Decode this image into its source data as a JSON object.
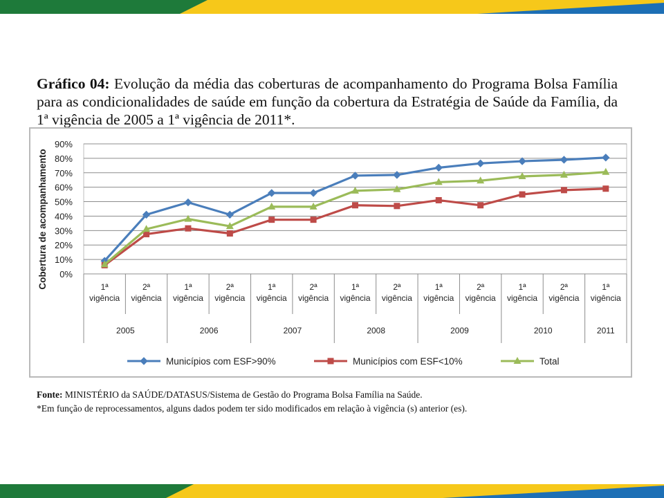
{
  "colors": {
    "band_green": "#1e7a3a",
    "band_yellow": "#f6c81a",
    "band_blue": "#1d6fb5",
    "series_blue": "#4a7ebb",
    "series_red": "#be4b48",
    "series_green": "#9bbb59"
  },
  "caption": {
    "label": "Gráfico 04:",
    "text": " Evolução da média das coberturas de acompanhamento do Programa Bolsa Família para as condicionalidades de saúde em função da cobertura da Estratégia de Saúde da Família, da 1ª vigência de 2005 a 1ª vigência de 2011*."
  },
  "chart_data": {
    "type": "line",
    "ylabel": "Cobertura de acompanhamento",
    "ylim": [
      0,
      90
    ],
    "yticks": [
      "0%",
      "10%",
      "20%",
      "30%",
      "40%",
      "50%",
      "60%",
      "70%",
      "80%",
      "90%"
    ],
    "grid": true,
    "legend_position": "bottom",
    "categories": [
      {
        "line1": "1ª",
        "line2": "vigência"
      },
      {
        "line1": "2ª",
        "line2": "vigência"
      },
      {
        "line1": "1ª",
        "line2": "vigência"
      },
      {
        "line1": "2ª",
        "line2": "vigência"
      },
      {
        "line1": "1ª",
        "line2": "vigência"
      },
      {
        "line1": "2ª",
        "line2": "vigência"
      },
      {
        "line1": "1ª",
        "line2": "vigência"
      },
      {
        "line1": "2ª",
        "line2": "vigência"
      },
      {
        "line1": "1ª",
        "line2": "vigência"
      },
      {
        "line1": "2ª",
        "line2": "vigência"
      },
      {
        "line1": "1ª",
        "line2": "vigência"
      },
      {
        "line1": "2ª",
        "line2": "vigência"
      },
      {
        "line1": "1ª",
        "line2": "vigência"
      }
    ],
    "groups": [
      {
        "label": "2005",
        "span": 2
      },
      {
        "label": "2006",
        "span": 2
      },
      {
        "label": "2007",
        "span": 2
      },
      {
        "label": "2008",
        "span": 2
      },
      {
        "label": "2009",
        "span": 2
      },
      {
        "label": "2010",
        "span": 2
      },
      {
        "label": "2011",
        "span": 1
      }
    ],
    "series": [
      {
        "name": "Municípios com ESF>90%",
        "color": "#4a7ebb",
        "marker": "diamond",
        "values": [
          9,
          41,
          49.5,
          41,
          56,
          56,
          68,
          68.5,
          73.5,
          76.5,
          78,
          79,
          80.5
        ]
      },
      {
        "name": "Municípios com ESF<10%",
        "color": "#be4b48",
        "marker": "square",
        "values": [
          6,
          27.5,
          31.5,
          28,
          37.5,
          37.5,
          47.5,
          47,
          51,
          47.5,
          55,
          58,
          59
        ]
      },
      {
        "name": "Total",
        "color": "#9bbb59",
        "marker": "triangle",
        "values": [
          6.5,
          31,
          38,
          33,
          46.5,
          46.5,
          57.5,
          58.5,
          63.5,
          64.5,
          67.5,
          68.5,
          70.5
        ]
      }
    ]
  },
  "source": {
    "label": "Fonte:",
    "text": " MINISTÉRIO da SAÚDE/DATASUS/Sistema de Gestão do Programa Bolsa Família na Saúde.",
    "note": "*Em função de reprocessamentos, alguns dados podem ter sido modificados em relação à vigência (s) anterior (es)."
  }
}
